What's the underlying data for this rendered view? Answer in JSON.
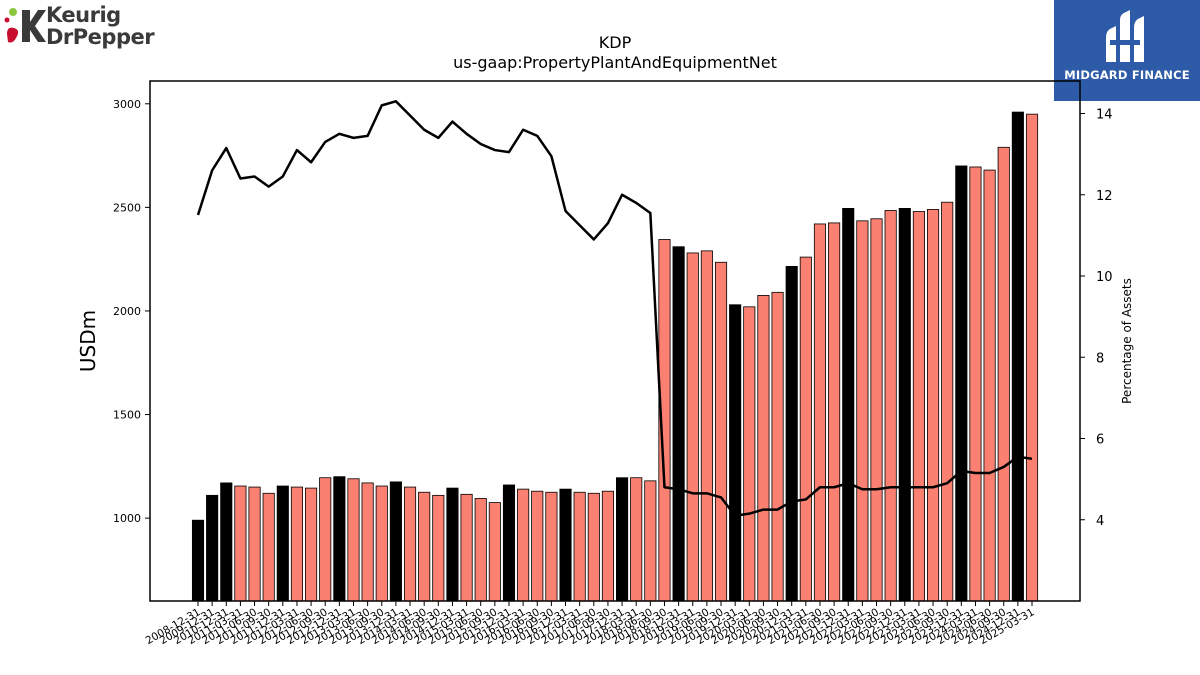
{
  "header": {
    "left_logo_line1": "Keurig",
    "left_logo_line2": "DrPepper",
    "right_logo_text": "MIDGARD FINANCE"
  },
  "colors": {
    "bar_highlight": "#000000",
    "bar_normal": "#fa8072",
    "line": "#000000",
    "logo_bg": "#2d5ba8"
  },
  "chart_data": {
    "type": "bar",
    "title": "KDP",
    "subtitle": "us-gaap:PropertyPlantAndEquipmentNet",
    "ylabel": "USDm",
    "y2label": "Percentage of Assets",
    "ylim": [
      600,
      3110
    ],
    "y2lim": [
      2.0,
      14.8
    ],
    "yticks": [
      1000,
      1500,
      2000,
      2500,
      3000
    ],
    "y2ticks": [
      4,
      6,
      8,
      10,
      12,
      14
    ],
    "grid": false,
    "categories": [
      "2008-12-31",
      "2009-12-31",
      "2010-12-31",
      "2011-03-31",
      "2011-06-30",
      "2011-09-30",
      "2011-12-31",
      "2012-03-31",
      "2012-06-30",
      "2012-09-30",
      "2012-12-31",
      "2013-03-31",
      "2013-06-30",
      "2013-09-30",
      "2013-12-31",
      "2014-03-31",
      "2014-06-30",
      "2014-09-30",
      "2014-12-31",
      "2015-03-31",
      "2015-06-30",
      "2015-09-30",
      "2015-12-31",
      "2016-03-31",
      "2016-06-30",
      "2016-09-30",
      "2016-12-31",
      "2017-03-31",
      "2017-06-30",
      "2017-09-30",
      "2017-12-31",
      "2018-03-31",
      "2018-06-30",
      "2018-09-30",
      "2018-12-31",
      "2019-03-31",
      "2019-06-30",
      "2019-09-30",
      "2019-12-31",
      "2020-03-31",
      "2020-06-30",
      "2020-09-30",
      "2020-12-31",
      "2021-03-31",
      "2021-06-30",
      "2021-09-30",
      "2021-12-31",
      "2022-03-31",
      "2022-06-30",
      "2022-09-30",
      "2022-12-31",
      "2023-03-31",
      "2023-06-30",
      "2023-09-30",
      "2023-12-31",
      "2024-03-31",
      "2024-06-30",
      "2024-09-30",
      "2024-12-31",
      "2025-03-31"
    ],
    "series": [
      {
        "kind": "bar",
        "axis": "left",
        "values": [
          990,
          1110,
          1170,
          1155,
          1150,
          1120,
          1155,
          1150,
          1145,
          1195,
          1200,
          1190,
          1170,
          1155,
          1175,
          1150,
          1125,
          1110,
          1145,
          1115,
          1095,
          1075,
          1160,
          1140,
          1130,
          1125,
          1140,
          1125,
          1120,
          1130,
          1195,
          1195,
          1180,
          2345,
          2310,
          2280,
          2290,
          2235,
          2030,
          2020,
          2075,
          2090,
          2215,
          2260,
          2420,
          2425,
          2495,
          2435,
          2445,
          2485,
          2495,
          2480,
          2490,
          2525,
          2700,
          2695,
          2680,
          2790,
          2960,
          2950
        ],
        "highlight": [
          true,
          true,
          true,
          false,
          false,
          false,
          true,
          false,
          false,
          false,
          true,
          false,
          false,
          false,
          true,
          false,
          false,
          false,
          true,
          false,
          false,
          false,
          true,
          false,
          false,
          false,
          true,
          false,
          false,
          false,
          true,
          false,
          false,
          false,
          true,
          false,
          false,
          false,
          true,
          false,
          false,
          false,
          true,
          false,
          false,
          false,
          true,
          false,
          false,
          false,
          true,
          false,
          false,
          false,
          true,
          false,
          false,
          false,
          true,
          false
        ]
      },
      {
        "kind": "line",
        "axis": "right",
        "values": [
          11.5,
          12.6,
          13.15,
          12.4,
          12.45,
          12.2,
          12.45,
          13.1,
          12.8,
          13.3,
          13.5,
          13.4,
          13.45,
          14.2,
          14.3,
          13.95,
          13.6,
          13.4,
          13.8,
          13.5,
          13.25,
          13.1,
          13.05,
          13.6,
          13.45,
          12.95,
          11.6,
          11.25,
          10.9,
          11.3,
          12.0,
          11.8,
          11.55,
          4.8,
          4.75,
          4.65,
          4.65,
          4.55,
          4.1,
          4.15,
          4.25,
          4.25,
          4.45,
          4.5,
          4.8,
          4.8,
          4.9,
          4.75,
          4.75,
          4.8,
          4.8,
          4.8,
          4.8,
          4.9,
          5.2,
          5.15,
          5.15,
          5.3,
          5.55,
          5.5
        ]
      }
    ]
  }
}
